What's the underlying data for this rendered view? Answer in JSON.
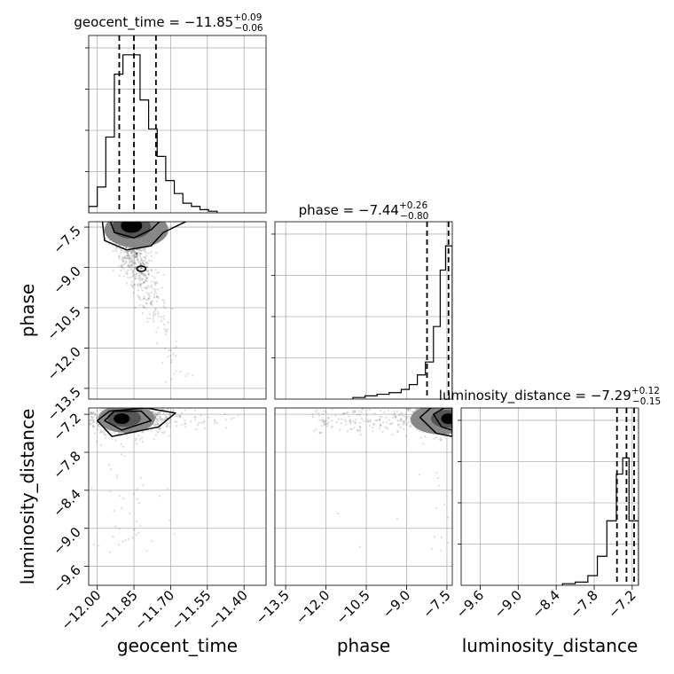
{
  "chart_data": {
    "type": "corner",
    "parameters": [
      "geocent_time",
      "phase",
      "luminosity_distance"
    ],
    "titles": [
      {
        "prefix": "geocent_time = −11.85",
        "plus": "+0.09",
        "minus": "−0.06"
      },
      {
        "prefix": "phase = −7.44",
        "plus": "+0.26",
        "minus": "−0.80"
      },
      {
        "prefix": "luminosity_distance = −7.29",
        "plus": "+0.12",
        "minus": "−0.15"
      }
    ],
    "ranges": {
      "geocent_time": [
        -12.035,
        -11.31
      ],
      "phase": [
        -13.9,
        -7.3
      ],
      "luminosity_distance": [
        -9.9,
        -7.1
      ]
    },
    "ticks": {
      "geocent_time": [
        -12.0,
        -11.85,
        -11.7,
        -11.55,
        -11.4
      ],
      "phase": [
        -13.5,
        -12.0,
        -10.5,
        -9.0,
        -7.5
      ],
      "luminosity_distance": [
        -9.6,
        -9.0,
        -8.4,
        -7.8,
        -7.2
      ]
    },
    "tick_labels": {
      "geocent_time": [
        "−12.00",
        "−11.85",
        "−11.70",
        "−11.55",
        "−11.40"
      ],
      "phase": [
        "−13.5",
        "−12.0",
        "−10.5",
        "−9.0",
        "−7.5"
      ],
      "luminosity_distance": [
        "−9.6",
        "−9.0",
        "−8.4",
        "−7.8",
        "−7.2"
      ]
    },
    "quantiles": {
      "geocent_time": [
        -11.91,
        -11.85,
        -11.76
      ],
      "phase": [
        -8.24,
        -7.44,
        -7.18
      ],
      "luminosity_distance": [
        -7.44,
        -7.29,
        -7.17
      ]
    },
    "hist_geocent_time": {
      "bin_edges": [
        -12.035,
        -12.0,
        -11.965,
        -11.93,
        -11.895,
        -11.86,
        -11.825,
        -11.79,
        -11.755,
        -11.72,
        -11.685,
        -11.65,
        -11.615,
        -11.58,
        -11.545,
        -11.51
      ],
      "counts": [
        0.04,
        0.16,
        0.47,
        0.86,
        0.98,
        0.98,
        0.7,
        0.52,
        0.35,
        0.2,
        0.12,
        0.06,
        0.04,
        0.02,
        0.01
      ]
    },
    "hist_phase": {
      "bin_edges": [
        -11.0,
        -10.55,
        -10.1,
        -9.65,
        -9.2,
        -8.9,
        -8.6,
        -8.3,
        -8.0,
        -7.75,
        -7.55,
        -7.4,
        -7.3
      ],
      "counts": [
        0.01,
        0.02,
        0.03,
        0.04,
        0.06,
        0.09,
        0.15,
        0.23,
        0.45,
        0.8,
        0.95,
        0.95
      ]
    },
    "hist_luminosity_distance": {
      "bin_edges": [
        -8.3,
        -8.1,
        -7.9,
        -7.75,
        -7.6,
        -7.45,
        -7.35,
        -7.25,
        -7.1
      ],
      "counts": [
        0.01,
        0.02,
        0.06,
        0.18,
        0.4,
        0.69,
        0.79,
        0.4
      ]
    },
    "grid": true,
    "xlabels": [
      "geocent_time",
      "phase",
      "luminosity_distance"
    ],
    "ylabels": [
      "",
      "phase",
      "luminosity_distance"
    ]
  }
}
